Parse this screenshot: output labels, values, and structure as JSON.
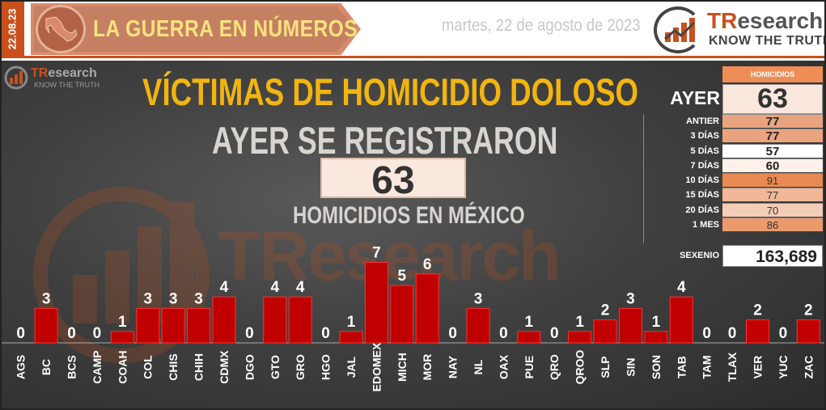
{
  "header": {
    "date_code": "22.08.23",
    "banner_title": "LA GUERRA EN NÚMEROS",
    "date_text": "martes, 22 de agosto de 2023",
    "brand_name_a": "TR",
    "brand_name_b": "esearch",
    "brand_tagline": "KNOW THE TRUTH",
    "accent_color": "#c9501c"
  },
  "watermark": {
    "name": "TResearch",
    "mini_tag": "KNOW THE TRUTH"
  },
  "main": {
    "title": "VÍCTIMAS DE HOMICIDIO DOLOSO",
    "subtitle": "AYER SE REGISTRARON",
    "big_value": "63",
    "caption": "HOMICIDIOS EN MÉXICO"
  },
  "table": {
    "header": "HOMICIDIOS",
    "ayer_label": "AYER",
    "ayer_value": "63",
    "rows": [
      {
        "label": "ANTIER",
        "value": "77",
        "color": "#e9a47f",
        "bold": true
      },
      {
        "label": "3 DÍAS",
        "value": "77",
        "color": "#e9a47f",
        "bold": true
      },
      {
        "label": "5 DÍAS",
        "value": "57",
        "color": "#ffffff",
        "bold": true
      },
      {
        "label": "7 DÍAS",
        "value": "60",
        "color": "#fdf1ea",
        "bold": true
      },
      {
        "label": "10 DÍAS",
        "value": "91",
        "color": "#e98a52",
        "bold": false
      },
      {
        "label": "15 DÍAS",
        "value": "77",
        "color": "#f0b798",
        "bold": false
      },
      {
        "label": "20 DÍAS",
        "value": "70",
        "color": "#f4cdb8",
        "bold": false
      },
      {
        "label": "1 MES",
        "value": "86",
        "color": "#eb9a6b",
        "bold": false
      }
    ],
    "sexenio_label": "SEXENIO",
    "sexenio_value": "163,689"
  },
  "chart_data": {
    "type": "bar",
    "categories": [
      "AGS",
      "BC",
      "BCS",
      "CAMP",
      "COAH",
      "COL",
      "CHIS",
      "CHIH",
      "CDMX",
      "DGO",
      "GTO",
      "GRO",
      "HGO",
      "JAL",
      "EDOMEX",
      "MICH",
      "MOR",
      "NAY",
      "NL",
      "OAX",
      "PUE",
      "QRO",
      "QROO",
      "SLP",
      "SIN",
      "SON",
      "TAB",
      "TAM",
      "TLAX",
      "VER",
      "YUC",
      "ZAC"
    ],
    "values": [
      0,
      3,
      0,
      0,
      1,
      3,
      3,
      3,
      4,
      0,
      4,
      4,
      0,
      1,
      7,
      5,
      6,
      0,
      3,
      0,
      1,
      0,
      1,
      2,
      3,
      1,
      4,
      0,
      0,
      2,
      0,
      2
    ],
    "bar_color": "#c00000",
    "ylim": [
      0,
      7
    ]
  }
}
